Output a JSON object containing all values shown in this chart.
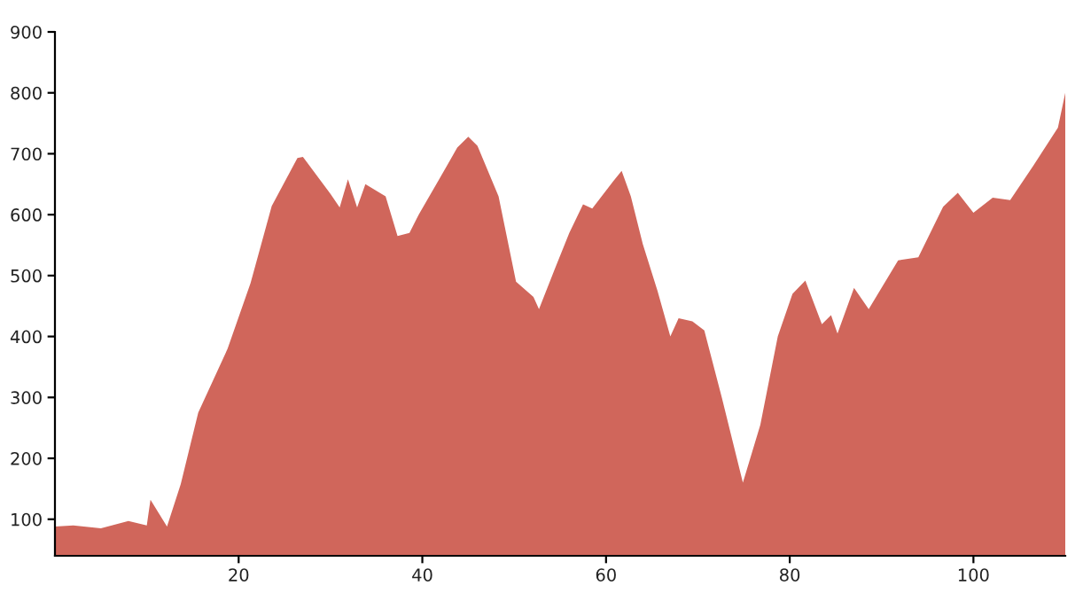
{
  "chart_data": {
    "type": "area",
    "color": "#d0665b",
    "x": [
      0,
      2,
      5,
      8,
      10,
      10.4,
      12.2,
      13.7,
      15.6,
      18.8,
      21.3,
      23.6,
      26.4,
      27,
      30,
      31,
      31.9,
      32.9,
      33.8,
      36,
      37.3,
      38.6,
      39.6,
      41.9,
      43.8,
      45,
      46,
      48.3,
      50.2,
      52.1,
      52.7,
      54.4,
      56,
      57.5,
      58.5,
      60.8,
      61.7,
      62.7,
      64,
      65.6,
      67,
      67.9,
      69.4,
      70.7,
      72.6,
      74.9,
      76.8,
      78.7,
      80.3,
      81.7,
      83.5,
      84.5,
      85.2,
      87,
      88.6,
      91.8,
      94,
      96.7,
      98.3,
      100,
      102.1,
      104,
      106.5,
      109.2,
      110
    ],
    "values": [
      88,
      90,
      85,
      97,
      90,
      132,
      88,
      158,
      275,
      380,
      488,
      614,
      693,
      695,
      634,
      612,
      658,
      612,
      650,
      630,
      565,
      570,
      600,
      660,
      710,
      728,
      713,
      630,
      490,
      465,
      445,
      510,
      570,
      617,
      610,
      655,
      672,
      630,
      552,
      475,
      400,
      430,
      425,
      410,
      300,
      160,
      255,
      400,
      470,
      492,
      420,
      435,
      405,
      480,
      445,
      525,
      530,
      613,
      636,
      603,
      628,
      624,
      680,
      743,
      800
    ],
    "xlim": [
      0,
      110
    ],
    "xticks": [
      20,
      40,
      60,
      80,
      100
    ],
    "ylim": [
      40,
      900
    ],
    "yticks": [
      100,
      200,
      300,
      400,
      500,
      600,
      700,
      800,
      900
    ],
    "grid": false,
    "legend": false
  }
}
